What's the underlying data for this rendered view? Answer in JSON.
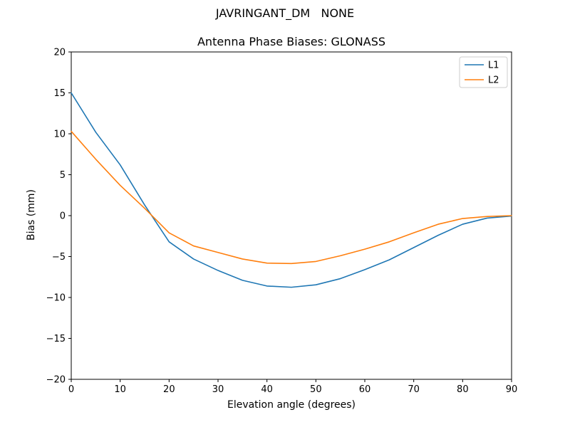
{
  "figure": {
    "background": "#ffffff",
    "frame_color": "#000000"
  },
  "chart_data": {
    "type": "line",
    "suptitle": "JAVRINGANT_DM   NONE",
    "title": "Antenna Phase Biases: GLONASS",
    "xlabel": "Elevation angle (degrees)",
    "ylabel": "Bias (mm)",
    "xlim": [
      0,
      90
    ],
    "ylim": [
      -20,
      20
    ],
    "xticks": [
      0,
      10,
      20,
      30,
      40,
      50,
      60,
      70,
      80,
      90
    ],
    "yticks": [
      -20,
      -15,
      -10,
      -5,
      0,
      5,
      10,
      15,
      20
    ],
    "grid": false,
    "x": [
      0,
      5,
      10,
      15,
      20,
      25,
      30,
      35,
      40,
      45,
      50,
      55,
      60,
      65,
      70,
      75,
      80,
      85,
      90
    ],
    "series": [
      {
        "name": "L1",
        "color": "#1f77b4",
        "values": [
          15.0,
          10.2,
          6.2,
          1.3,
          -3.2,
          -5.3,
          -6.7,
          -7.9,
          -8.6,
          -8.75,
          -8.45,
          -7.7,
          -6.6,
          -5.4,
          -3.9,
          -2.4,
          -1.05,
          -0.3,
          -0.05
        ]
      },
      {
        "name": "L2",
        "color": "#ff7f0e",
        "values": [
          10.3,
          6.9,
          3.7,
          0.9,
          -2.1,
          -3.7,
          -4.5,
          -5.3,
          -5.8,
          -5.85,
          -5.6,
          -4.9,
          -4.1,
          -3.2,
          -2.1,
          -1.05,
          -0.35,
          -0.1,
          0.0
        ]
      }
    ],
    "legend": {
      "position": "upper right",
      "entries": [
        "L1",
        "L2"
      ]
    }
  }
}
